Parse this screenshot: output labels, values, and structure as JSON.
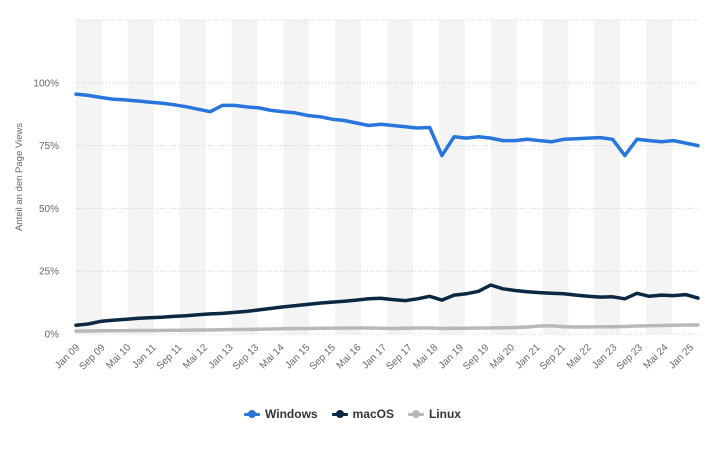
{
  "chart_data": {
    "type": "line",
    "title": "",
    "xlabel": "",
    "ylabel": "Anteil an den Page Views",
    "ylim": [
      0,
      125
    ],
    "y_ticks": [
      0,
      25,
      50,
      75,
      100
    ],
    "y_tick_labels": [
      "0%",
      "25%",
      "50%",
      "75%",
      "100%"
    ],
    "x_tick_labels": [
      "Jan 09",
      "Sep 09",
      "Mai 10",
      "Jan 11",
      "Sep 11",
      "Mai 12",
      "Jan 13",
      "Sep 13",
      "Mai 14",
      "Jan 15",
      "Sep 15",
      "Mai 16",
      "Jan 17",
      "Sep 17",
      "Mai 18",
      "Jan 19",
      "Sep 19",
      "Mai 20",
      "Jan 21",
      "Sep 21",
      "Mai 22",
      "Jan 23",
      "Sep 23",
      "Mai 24",
      "Jan 25"
    ],
    "legend_position": "bottom-center",
    "grid": "horizontal dotted with alternating shaded bands",
    "series": [
      {
        "name": "Windows",
        "color": "#2876dd",
        "values": [
          95.5,
          95,
          94.2,
          93.5,
          93.2,
          92.8,
          92.3,
          91.9,
          91.3,
          90.5,
          89.5,
          88.5,
          91,
          91,
          90.4,
          90,
          89,
          88.5,
          88,
          87,
          86.5,
          85.5,
          85,
          84,
          83,
          83.5,
          83,
          82.5,
          82,
          82.2,
          71,
          78.5,
          78,
          78.5,
          78,
          77,
          77,
          77.5,
          77,
          76.5,
          77.5,
          77.7,
          78,
          78.2,
          77.5,
          71,
          77.5,
          77,
          76.5,
          77,
          76,
          75
        ]
      },
      {
        "name": "macOS",
        "color": "#0d2843",
        "values": [
          3.5,
          4,
          5,
          5.5,
          5.8,
          6.2,
          6.5,
          6.7,
          7,
          7.3,
          7.7,
          8,
          8.2,
          8.6,
          9,
          9.6,
          10.2,
          10.8,
          11.3,
          11.8,
          12.3,
          12.7,
          13,
          13.5,
          14,
          14.2,
          13.7,
          13.3,
          14,
          15,
          13.5,
          15.5,
          16,
          17,
          19.5,
          18,
          17.3,
          16.8,
          16.5,
          16.2,
          16,
          15.5,
          15,
          14.7,
          14.8,
          14,
          16.2,
          15,
          15.5,
          15.3,
          15.7,
          14.3
        ]
      },
      {
        "name": "Linux",
        "color": "#b8b8b8",
        "values": [
          1.2,
          1.2,
          1.3,
          1.3,
          1.3,
          1.4,
          1.4,
          1.4,
          1.5,
          1.5,
          1.6,
          1.6,
          1.7,
          1.8,
          1.8,
          1.9,
          2,
          2.1,
          2.2,
          2.2,
          2.3,
          2.3,
          2.4,
          2.4,
          2.4,
          2.3,
          2.2,
          2.3,
          2.4,
          2.4,
          2.2,
          2.3,
          2.3,
          2.4,
          2.4,
          2.5,
          2.6,
          2.8,
          3.2,
          3.3,
          2.9,
          2.8,
          2.8,
          2.9,
          2.9,
          3,
          3.2,
          3.3,
          3.4,
          3.5,
          3.6,
          3.6
        ]
      }
    ]
  }
}
